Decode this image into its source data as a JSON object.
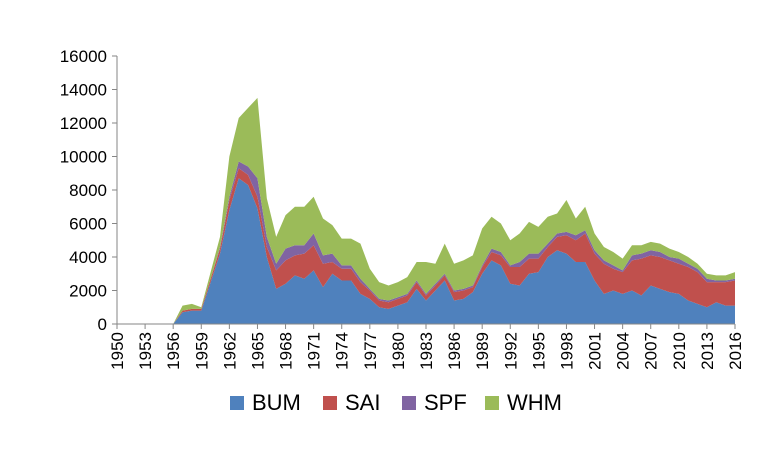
{
  "chart_data": {
    "type": "area",
    "stacked": true,
    "title": "",
    "xlabel": "",
    "ylabel": "",
    "ylim": [
      0,
      16000
    ],
    "yticks": [
      0,
      2000,
      4000,
      6000,
      8000,
      10000,
      12000,
      14000,
      16000
    ],
    "ytick_labels": [
      "0",
      "2000",
      "4000",
      "6000",
      "8000",
      "10000",
      "12000",
      "14000",
      "16000"
    ],
    "xlim": [
      1950,
      2016
    ],
    "xticks": [
      "1950",
      "1953",
      "1956",
      "1959",
      "1962",
      "1965",
      "1968",
      "1971",
      "1974",
      "1977",
      "1980",
      "1983",
      "1986",
      "1989",
      "1992",
      "1995",
      "1998",
      "2001",
      "2004",
      "2007",
      "2010",
      "2013",
      "2016"
    ],
    "grid": false,
    "legend_position": "bottom",
    "x": [
      1950,
      1951,
      1952,
      1953,
      1954,
      1955,
      1956,
      1957,
      1958,
      1959,
      1960,
      1961,
      1962,
      1963,
      1964,
      1965,
      1966,
      1967,
      1968,
      1969,
      1970,
      1971,
      1972,
      1973,
      1974,
      1975,
      1976,
      1977,
      1978,
      1979,
      1980,
      1981,
      1982,
      1983,
      1984,
      1985,
      1986,
      1987,
      1988,
      1989,
      1990,
      1991,
      1992,
      1993,
      1994,
      1995,
      1996,
      1997,
      1998,
      1999,
      2000,
      2001,
      2002,
      2003,
      2004,
      2005,
      2006,
      2007,
      2008,
      2009,
      2010,
      2011,
      2012,
      2013,
      2014,
      2015,
      2016
    ],
    "series": [
      {
        "name": "BUM",
        "color": "#4f81bd",
        "values": [
          0,
          0,
          0,
          0,
          0,
          0,
          0,
          700,
          800,
          800,
          2500,
          4200,
          6800,
          8700,
          8300,
          6900,
          4000,
          2100,
          2400,
          2900,
          2700,
          3200,
          2200,
          3000,
          2600,
          2600,
          1800,
          1500,
          1000,
          900,
          1100,
          1300,
          2100,
          1400,
          2000,
          2600,
          1400,
          1500,
          1900,
          3000,
          3800,
          3500,
          2400,
          2300,
          3000,
          3100,
          4000,
          4400,
          4200,
          3700,
          3700,
          2600,
          1800,
          2000,
          1800,
          2000,
          1700,
          2300,
          2100,
          1900,
          1800,
          1400,
          1200,
          1000,
          1300,
          1100,
          1100
        ]
      },
      {
        "name": "SAI",
        "color": "#c0504d",
        "values": [
          0,
          0,
          0,
          0,
          0,
          0,
          0,
          100,
          100,
          100,
          200,
          300,
          600,
          600,
          600,
          700,
          600,
          1100,
          1400,
          1200,
          1500,
          1500,
          1400,
          700,
          700,
          700,
          700,
          500,
          400,
          400,
          400,
          400,
          400,
          300,
          300,
          300,
          500,
          500,
          300,
          400,
          500,
          600,
          1000,
          1100,
          900,
          800,
          600,
          800,
          1100,
          1300,
          1700,
          1600,
          1800,
          1300,
          1300,
          1800,
          2200,
          1800,
          1900,
          1900,
          1800,
          2000,
          1900,
          1500,
          1200,
          1400,
          1500
        ]
      },
      {
        "name": "SPF",
        "color": "#8064a2",
        "values": [
          0,
          0,
          0,
          0,
          0,
          0,
          0,
          0,
          0,
          0,
          0,
          100,
          200,
          400,
          500,
          1100,
          600,
          400,
          700,
          600,
          500,
          700,
          500,
          500,
          200,
          200,
          200,
          100,
          100,
          100,
          100,
          100,
          100,
          100,
          100,
          100,
          100,
          100,
          100,
          100,
          200,
          200,
          100,
          300,
          300,
          300,
          200,
          200,
          200,
          300,
          200,
          200,
          200,
          200,
          100,
          300,
          300,
          300,
          300,
          200,
          300,
          200,
          200,
          200,
          100,
          100,
          100
        ]
      },
      {
        "name": "WHM",
        "color": "#9bbb59",
        "values": [
          0,
          0,
          0,
          0,
          0,
          0,
          0,
          300,
          300,
          100,
          400,
          600,
          2400,
          2600,
          3500,
          4800,
          2300,
          1600,
          2000,
          2300,
          2300,
          2200,
          2200,
          1700,
          1600,
          1600,
          2100,
          1200,
          1000,
          900,
          900,
          1000,
          1100,
          1900,
          1200,
          1800,
          1600,
          1700,
          1800,
          2200,
          1900,
          1700,
          1500,
          1700,
          1900,
          1600,
          1600,
          1200,
          1900,
          1000,
          1400,
          1000,
          800,
          800,
          700,
          600,
          500,
          500,
          500,
          500,
          400,
          400,
          300,
          300,
          300,
          300,
          400
        ]
      }
    ]
  }
}
